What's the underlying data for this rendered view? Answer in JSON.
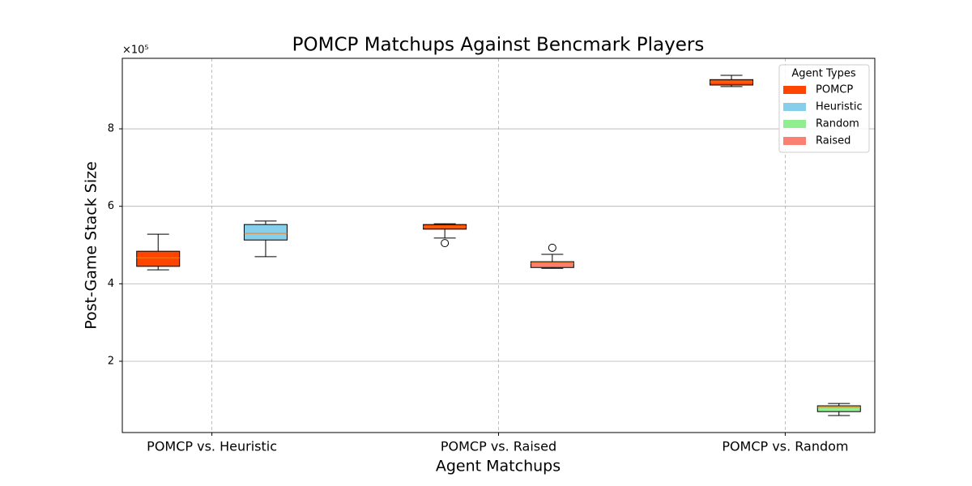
{
  "chart_data": {
    "type": "box",
    "title": "POMCP Matchups Against Bencmark Players",
    "x_label": "Agent Matchups",
    "y_label": "Post-Game Stack Size",
    "y_offset_label": "×10⁵",
    "categories": [
      "POMCP vs. Heuristic",
      "POMCP vs. Raised",
      "POMCP vs. Random"
    ],
    "ylim": [
      16000,
      982000
    ],
    "yticks": [
      {
        "value": 200000,
        "label": "2"
      },
      {
        "value": 400000,
        "label": "4"
      },
      {
        "value": 600000,
        "label": "6"
      },
      {
        "value": 800000,
        "label": "8"
      }
    ],
    "grid": true,
    "legend_title": "Agent Types",
    "legend_position": "upper-right",
    "median_color": "#ff7f0e",
    "series": [
      {
        "name": "POMCP",
        "color": "#ff4500",
        "values": [
          {
            "whislo": 436000,
            "q1": 445000,
            "med": 467000,
            "q3": 484000,
            "whishi": 528000
          },
          {
            "whislo": 518000,
            "q1": 541000,
            "med": 547000,
            "q3": 553000,
            "whishi": 555000,
            "fliers": [
              505000
            ]
          },
          {
            "whislo": 909000,
            "q1": 913000,
            "med": 921000,
            "q3": 927000,
            "whishi": 938000
          }
        ]
      },
      {
        "name": "Heuristic",
        "color": "#87ceeb",
        "values": [
          {
            "whislo": 470000,
            "q1": 513000,
            "med": 530000,
            "q3": 553000,
            "whishi": 562000
          },
          null,
          null
        ]
      },
      {
        "name": "Random",
        "color": "#90ee90",
        "values": [
          null,
          null,
          {
            "whislo": 60000,
            "q1": 70000,
            "med": 81000,
            "q3": 85000,
            "whishi": 91000
          }
        ]
      },
      {
        "name": "Raised",
        "color": "#fa8072",
        "values": [
          null,
          {
            "whislo": 440000,
            "q1": 442000,
            "med": 453000,
            "q3": 457000,
            "whishi": 476000,
            "fliers": [
              493000
            ]
          },
          null
        ]
      }
    ]
  }
}
